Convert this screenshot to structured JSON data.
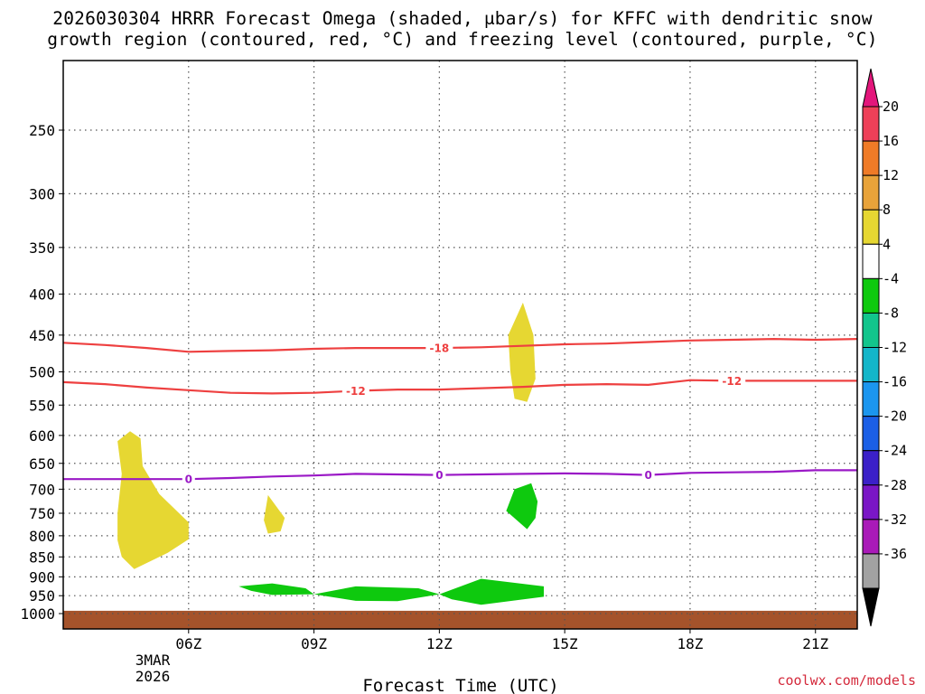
{
  "chart_data": {
    "type": "heatmap",
    "title": "2026030304 HRRR Forecast Omega (shaded, μbar/s) for KFFC with dendritic snow growth region (contoured, red, °C) and freezing level (contoured, purple, °C)",
    "title_line1": "2026030304 HRRR Forecast Omega (shaded, μbar/s) for KFFC with dendritic snow",
    "title_line2": "growth region (contoured, red, °C) and freezing level (contoured, purple, °C)",
    "xlabel": "Forecast Time (UTC)",
    "ylabel": "",
    "credit": "coolwx.com/models",
    "x_ticks": [
      "06Z",
      "09Z",
      "12Z",
      "15Z",
      "18Z",
      "21Z"
    ],
    "x_tick_hours": [
      6,
      9,
      12,
      15,
      18,
      21
    ],
    "x_date_line1": "3MAR",
    "x_date_line2": "2026",
    "xlim_hours": [
      3,
      22
    ],
    "y_ticks": [
      "250",
      "300",
      "350",
      "400",
      "450",
      "500",
      "550",
      "600",
      "650",
      "700",
      "750",
      "800",
      "850",
      "900",
      "950",
      "1000"
    ],
    "y_tick_values": [
      250,
      300,
      350,
      400,
      450,
      500,
      550,
      600,
      650,
      700,
      750,
      800,
      850,
      900,
      950,
      1000
    ],
    "ylim_hpa": [
      1025,
      200
    ],
    "y_scale": "log-pressure (inverted)",
    "grid": "dotted",
    "colorbar": {
      "labels": [
        "20",
        "16",
        "12",
        "8",
        "4",
        "-4",
        "-8",
        "-12",
        "-16",
        "-20",
        "-24",
        "-28",
        "-32",
        "-36"
      ],
      "colors": [
        "#ee4058",
        "#ef7b27",
        "#e8a33a",
        "#e6d732",
        "#ffffff",
        "#0ec90e",
        "#12c58c",
        "#13b6c9",
        "#1b96ef",
        "#1b5fe6",
        "#3b20c8",
        "#7a16c6",
        "#a91ab8",
        "#a2a2a2"
      ],
      "top_arrow_color": "#e3167b",
      "bottom_arrow_color": "#000000"
    },
    "contours": [
      {
        "value": "-18",
        "color": "#ee4040",
        "label_hours": [
          12.0
        ],
        "points": [
          [
            3.0,
            460
          ],
          [
            4.0,
            463
          ],
          [
            5.0,
            467
          ],
          [
            6.0,
            472
          ],
          [
            7.0,
            471
          ],
          [
            8.0,
            470
          ],
          [
            9.0,
            468
          ],
          [
            10.0,
            467
          ],
          [
            11.0,
            467
          ],
          [
            12.0,
            467
          ],
          [
            13.0,
            466
          ],
          [
            14.0,
            464
          ],
          [
            15.0,
            462
          ],
          [
            16.0,
            461
          ],
          [
            17.0,
            459
          ],
          [
            18.0,
            457
          ],
          [
            19.0,
            456
          ],
          [
            20.0,
            455
          ],
          [
            21.0,
            456
          ],
          [
            22.0,
            455
          ]
        ]
      },
      {
        "value": "-12",
        "color": "#ee4040",
        "label_hours": [
          10.0,
          19.0
        ],
        "points": [
          [
            3.0,
            515
          ],
          [
            4.0,
            518
          ],
          [
            5.0,
            523
          ],
          [
            6.0,
            527
          ],
          [
            7.0,
            531
          ],
          [
            8.0,
            532
          ],
          [
            9.0,
            531
          ],
          [
            10.0,
            528
          ],
          [
            11.0,
            526
          ],
          [
            12.0,
            526
          ],
          [
            13.0,
            524
          ],
          [
            14.0,
            522
          ],
          [
            15.0,
            519
          ],
          [
            16.0,
            518
          ],
          [
            17.0,
            519
          ],
          [
            18.0,
            512
          ],
          [
            19.0,
            513
          ],
          [
            20.0,
            513
          ],
          [
            21.0,
            513
          ],
          [
            22.0,
            513
          ]
        ]
      },
      {
        "value": "0",
        "color": "#9a18c6",
        "label_hours": [
          6.0,
          12.0,
          17.0
        ],
        "points": [
          [
            3.0,
            680
          ],
          [
            4.0,
            680
          ],
          [
            5.0,
            680
          ],
          [
            6.0,
            680
          ],
          [
            7.0,
            678
          ],
          [
            8.0,
            675
          ],
          [
            9.0,
            673
          ],
          [
            10.0,
            670
          ],
          [
            11.0,
            671
          ],
          [
            12.0,
            672
          ],
          [
            13.0,
            671
          ],
          [
            14.0,
            670
          ],
          [
            15.0,
            669
          ],
          [
            16.0,
            670
          ],
          [
            17.0,
            672
          ],
          [
            18.0,
            668
          ],
          [
            19.0,
            667
          ],
          [
            20.0,
            666
          ],
          [
            21.0,
            663
          ],
          [
            22.0,
            663
          ]
        ]
      }
    ],
    "shaded_regions": [
      {
        "range": "4 to 8",
        "color": "#e6d732",
        "points": [
          [
            4.6,
            593
          ],
          [
            4.85,
            605
          ],
          [
            4.9,
            655
          ],
          [
            5.3,
            710
          ],
          [
            6.0,
            770
          ],
          [
            6.0,
            808
          ],
          [
            5.5,
            840
          ],
          [
            4.7,
            880
          ],
          [
            4.4,
            850
          ],
          [
            4.3,
            810
          ],
          [
            4.3,
            750
          ],
          [
            4.4,
            670
          ],
          [
            4.3,
            610
          ]
        ]
      },
      {
        "range": "4 to 8",
        "color": "#e6d732",
        "points": [
          [
            7.9,
            712
          ],
          [
            8.3,
            760
          ],
          [
            8.2,
            790
          ],
          [
            7.9,
            795
          ],
          [
            7.8,
            765
          ]
        ]
      },
      {
        "range": "4 to 8",
        "color": "#e6d732",
        "points": [
          [
            14.0,
            410
          ],
          [
            14.25,
            450
          ],
          [
            14.3,
            510
          ],
          [
            14.1,
            545
          ],
          [
            13.8,
            540
          ],
          [
            13.7,
            500
          ],
          [
            13.65,
            450
          ]
        ]
      },
      {
        "range": "-8 to -4",
        "color": "#0ec90e",
        "points": [
          [
            14.2,
            688
          ],
          [
            14.35,
            725
          ],
          [
            14.3,
            760
          ],
          [
            14.1,
            785
          ],
          [
            13.6,
            745
          ],
          [
            13.8,
            700
          ]
        ]
      },
      {
        "range": "-8 to -4",
        "color": "#0ec90e",
        "points": [
          [
            7.2,
            925
          ],
          [
            8.0,
            917
          ],
          [
            8.8,
            930
          ],
          [
            9.0,
            946
          ],
          [
            8.0,
            948
          ],
          [
            7.5,
            937
          ]
        ]
      },
      {
        "range": "-8 to -4",
        "color": "#0ec90e",
        "points": [
          [
            9.0,
            946
          ],
          [
            10.0,
            925
          ],
          [
            11.5,
            930
          ],
          [
            12.0,
            946
          ],
          [
            11.0,
            965
          ],
          [
            10.0,
            964
          ]
        ]
      },
      {
        "range": "-8 to -4",
        "color": "#0ec90e",
        "points": [
          [
            12.0,
            946
          ],
          [
            13.0,
            905
          ],
          [
            14.5,
            925
          ],
          [
            14.5,
            953
          ],
          [
            13.0,
            975
          ],
          [
            12.3,
            960
          ]
        ]
      }
    ],
    "ground": {
      "color": "#a5532b",
      "top_hpa": 992
    }
  }
}
